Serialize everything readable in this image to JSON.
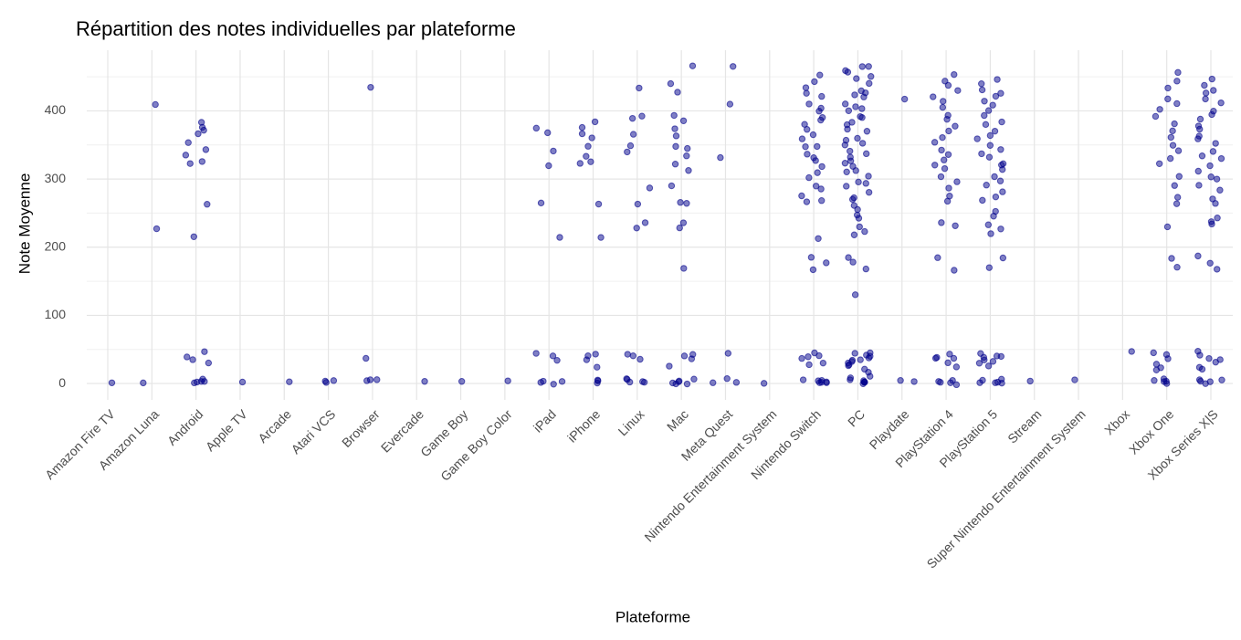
{
  "chart_data": {
    "type": "strip",
    "title": "Répartition des notes individuelles par plateforme",
    "x_label": "Plateforme",
    "y_label": "Note Moyenne",
    "color": "#00008b",
    "ylim": [
      -24,
      489
    ],
    "yticks": [
      0,
      100,
      200,
      300,
      400
    ],
    "minor_yticks": [
      50,
      150,
      250,
      350,
      450
    ],
    "grid": true,
    "categories": [
      "Amazon Fire TV",
      "Amazon Luna",
      "Android",
      "Apple TV",
      "Arcade",
      "Atari VCS",
      "Browser",
      "Evercade",
      "Game Boy",
      "Game Boy Color",
      "iPad",
      "iPhone",
      "Linux",
      "Mac",
      "Meta Quest",
      "Nintendo Entertainment System",
      "Nintendo Switch",
      "PC",
      "Playdate",
      "PlayStation 4",
      "PlayStation 5",
      "Stream",
      "Super Nintendo Entertainment System",
      "Xbox",
      "Xbox One",
      "Xbox Series X|S"
    ],
    "points": [
      [
        0
      ],
      [
        412,
        228,
        3
      ],
      [
        385,
        375,
        370,
        365,
        355,
        345,
        335,
        325,
        322,
        265,
        215,
        45,
        38,
        35,
        30,
        5,
        3,
        2,
        4,
        1
      ],
      [
        0
      ],
      [
        2
      ],
      [
        3,
        3,
        4
      ],
      [
        432,
        35,
        3,
        3,
        4
      ],
      [
        3
      ],
      [
        5
      ],
      [
        5
      ],
      [
        375,
        368,
        340,
        322,
        265,
        215,
        45,
        40,
        35,
        5,
        3,
        2,
        1
      ],
      [
        385,
        378,
        365,
        362,
        350,
        335,
        325,
        322,
        265,
        217,
        45,
        38,
        35,
        25,
        5,
        3,
        2
      ],
      [
        432,
        392,
        390,
        365,
        348,
        340,
        288,
        265,
        235,
        228,
        45,
        38,
        35,
        5,
        4,
        3,
        2,
        2
      ],
      [
        465,
        442,
        430,
        392,
        388,
        375,
        365,
        348,
        345,
        335,
        320,
        310,
        290,
        265,
        265,
        235,
        228,
        168,
        45,
        40,
        35,
        25,
        5,
        4,
        3,
        3,
        2,
        2
      ],
      [
        465,
        412,
        333,
        45,
        5,
        3,
        2
      ],
      [
        2
      ],
      [
        455,
        445,
        432,
        428,
        420,
        412,
        405,
        398,
        392,
        385,
        378,
        372,
        365,
        358,
        350,
        345,
        338,
        332,
        325,
        318,
        310,
        300,
        290,
        285,
        278,
        270,
        265,
        215,
        185,
        178,
        168,
        45,
        42,
        38,
        35,
        30,
        25,
        8,
        5,
        4,
        3,
        2,
        2,
        1
      ],
      [
        465,
        465,
        460,
        455,
        450,
        445,
        440,
        432,
        428,
        422,
        418,
        412,
        408,
        402,
        398,
        392,
        388,
        382,
        378,
        372,
        368,
        362,
        358,
        352,
        348,
        342,
        338,
        332,
        328,
        322,
        318,
        312,
        308,
        302,
        298,
        292,
        288,
        282,
        275,
        268,
        262,
        255,
        248,
        240,
        232,
        225,
        218,
        185,
        178,
        168,
        132,
        45,
        44,
        42,
        40,
        38,
        36,
        34,
        32,
        30,
        28,
        25,
        20,
        15,
        10,
        8,
        5,
        4,
        3,
        2,
        1,
        0
      ],
      [
        416,
        2,
        3
      ],
      [
        455,
        445,
        435,
        428,
        420,
        412,
        405,
        395,
        385,
        375,
        368,
        360,
        352,
        345,
        338,
        330,
        322,
        315,
        305,
        295,
        285,
        275,
        265,
        235,
        230,
        185,
        168,
        45,
        40,
        38,
        35,
        30,
        25,
        5,
        4,
        3,
        2,
        1
      ],
      [
        445,
        438,
        430,
        425,
        420,
        415,
        408,
        400,
        392,
        385,
        378,
        372,
        365,
        358,
        352,
        345,
        338,
        332,
        325,
        318,
        312,
        305,
        298,
        290,
        282,
        275,
        268,
        255,
        245,
        235,
        228,
        218,
        185,
        170,
        45,
        42,
        40,
        38,
        35,
        32,
        30,
        25,
        5,
        4,
        3,
        2,
        2,
        1
      ],
      [
        3
      ],
      [
        5
      ],
      [
        45
      ],
      [
        455,
        445,
        435,
        420,
        410,
        400,
        390,
        380,
        370,
        360,
        350,
        340,
        330,
        320,
        305,
        290,
        275,
        265,
        232,
        185,
        168,
        45,
        40,
        35,
        30,
        25,
        20,
        5,
        4,
        3,
        2,
        1
      ],
      [
        445,
        438,
        430,
        425,
        418,
        410,
        402,
        395,
        388,
        380,
        372,
        365,
        358,
        350,
        342,
        335,
        328,
        320,
        312,
        305,
        298,
        290,
        282,
        272,
        265,
        245,
        235,
        232,
        185,
        175,
        165,
        45,
        42,
        38,
        35,
        30,
        25,
        20,
        5,
        4,
        3,
        2,
        1
      ]
    ]
  }
}
